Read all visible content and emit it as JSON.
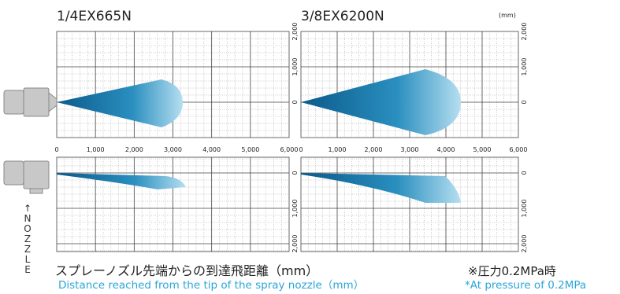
{
  "unit": "(mm)",
  "panels": [
    {
      "title": "1/4EX665N",
      "x_ticks": [
        "0",
        "1,000",
        "2,000",
        "3,000",
        "4,000",
        "5,000",
        "6,000"
      ],
      "top_y_ticks": [
        "2,000",
        "1,000",
        "0"
      ],
      "bottom_y_ticks": [
        "0",
        "1,000",
        "2,000"
      ]
    },
    {
      "title": "3/8EX6200N",
      "x_ticks": [
        "0",
        "1,000",
        "2,000",
        "3,000",
        "4,000",
        "5,000",
        "6,000"
      ],
      "top_y_ticks": [
        "2,000",
        "1,000",
        "0"
      ],
      "bottom_y_ticks": [
        "0",
        "1,000",
        "2,000"
      ]
    }
  ],
  "nozzle_label": "↑NOZZLE",
  "caption": {
    "jp": "スプレーノズル先端からの到達飛距離（mm）",
    "en": "Distance reached from the tip of the spray nozzle（mm）"
  },
  "note": {
    "jp": "※圧力0.2MPa時",
    "en": "*At pressure of 0.2MPa"
  }
}
